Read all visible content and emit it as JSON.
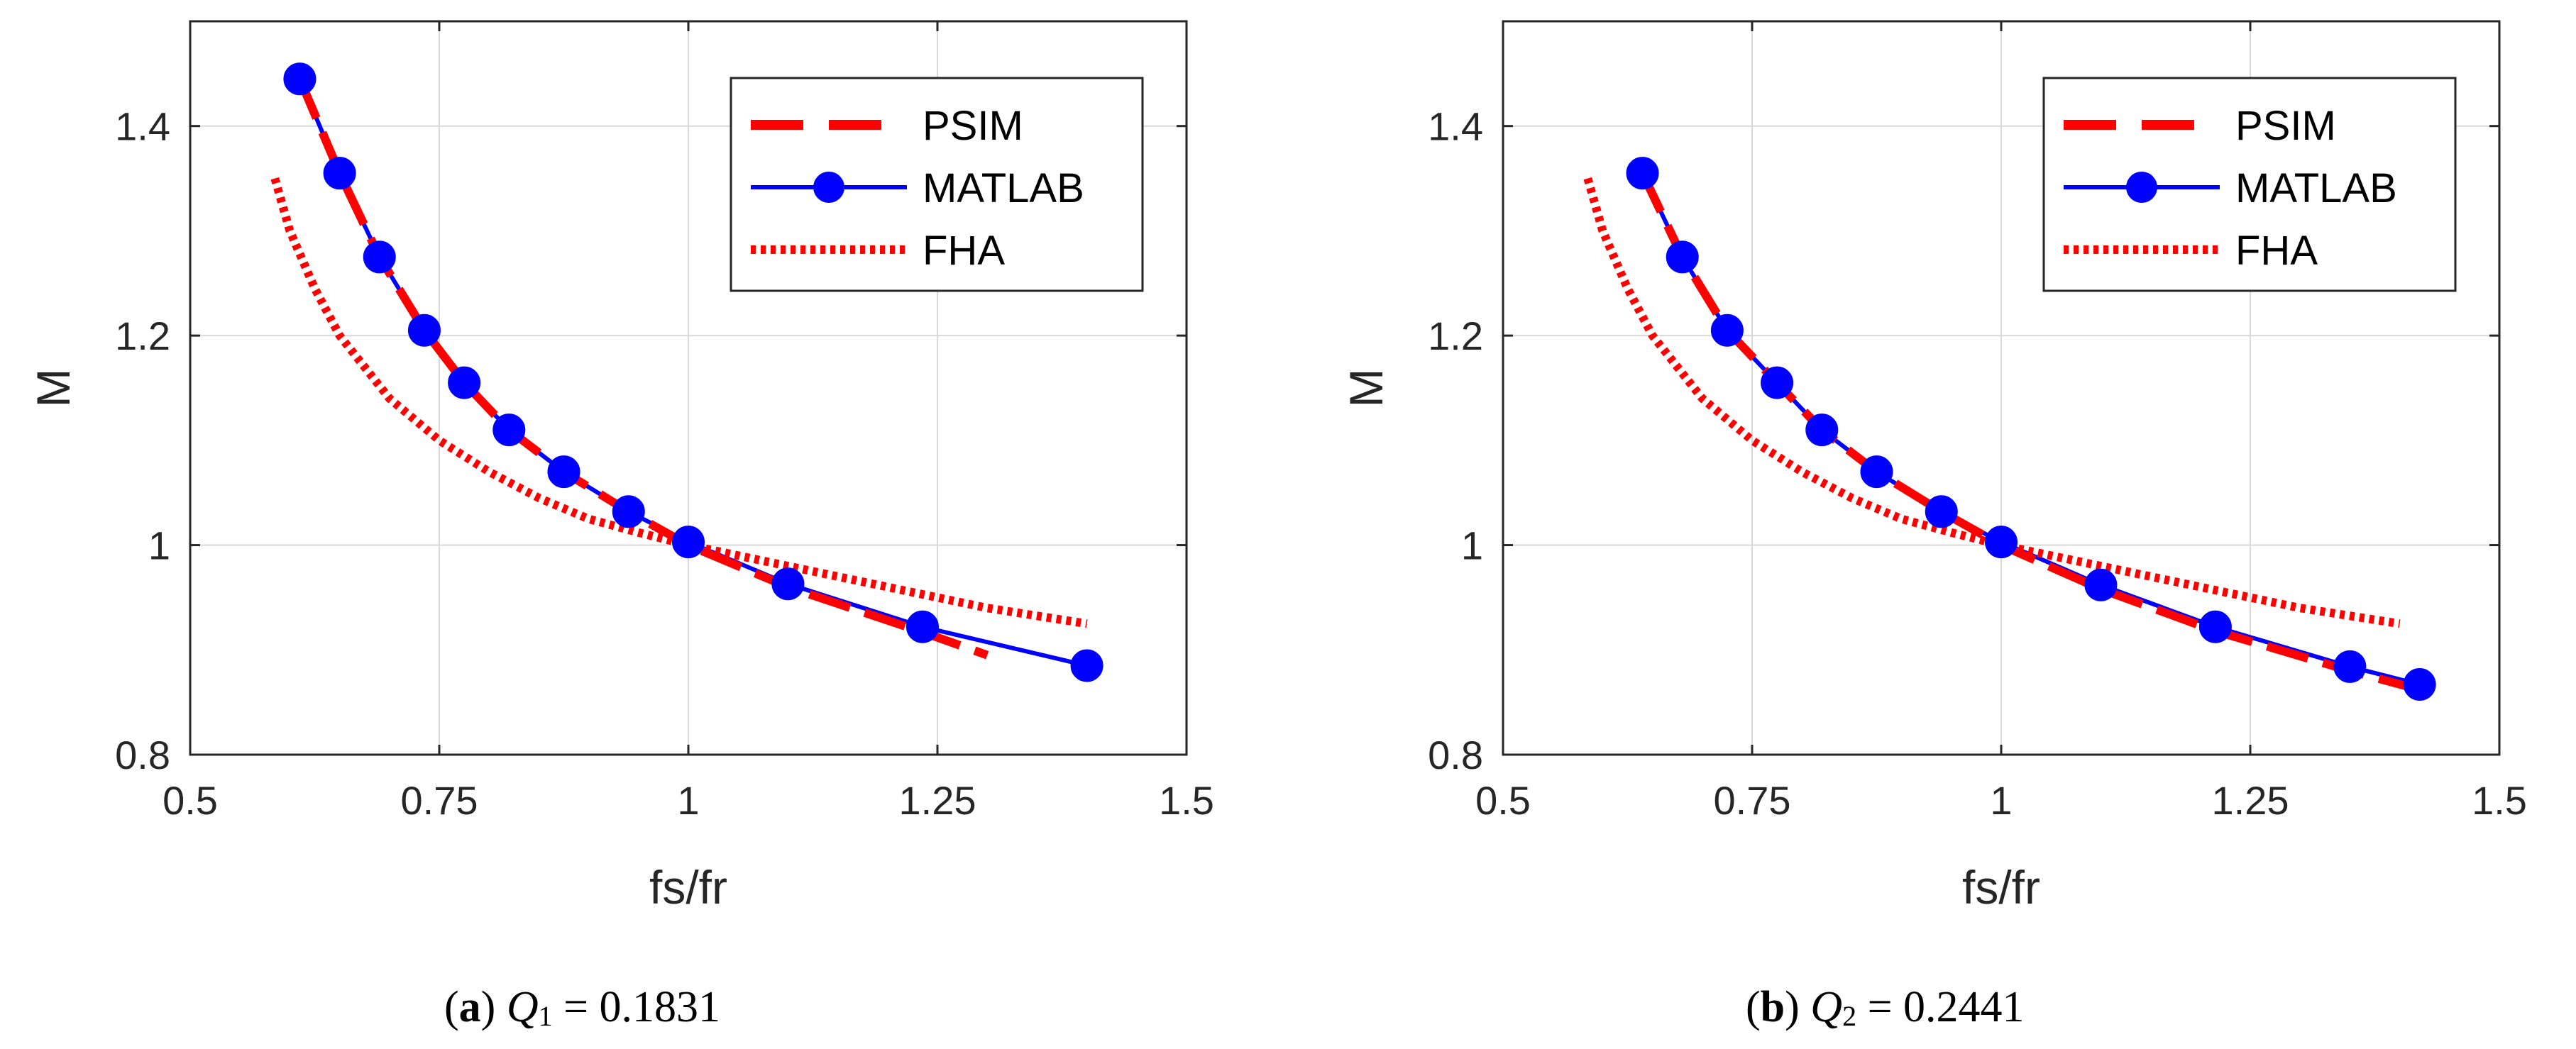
{
  "chart_data": [
    {
      "type": "line",
      "panel_label": "a",
      "caption": {
        "var": "Q",
        "sub": "1",
        "rest": " = 0.1831"
      },
      "xlabel": "fs/fr",
      "ylabel": "M",
      "xlim": [
        0.5,
        1.5
      ],
      "ylim": [
        0.8,
        1.5
      ],
      "xticks": [
        0.5,
        0.75,
        1,
        1.25,
        1.5
      ],
      "xtick_labels": [
        "0.5",
        "0.75",
        "1",
        "1.25",
        "1.5"
      ],
      "yticks": [
        0.8,
        1.0,
        1.2,
        1.4
      ],
      "ytick_labels": [
        "0.8",
        "1",
        "1.2",
        "1.4"
      ],
      "grid": true,
      "legend_position": "top-right",
      "series": [
        {
          "name": "PSIM",
          "style": "dashed",
          "color": "#ff0000",
          "x": [
            0.61,
            0.65,
            0.69,
            0.735,
            0.775,
            0.82,
            0.875,
            0.94,
            1.0,
            1.1,
            1.235,
            1.3
          ],
          "y": [
            1.445,
            1.355,
            1.275,
            1.205,
            1.155,
            1.11,
            1.07,
            1.032,
            1.0,
            0.96,
            0.917,
            0.895
          ]
        },
        {
          "name": "MATLAB",
          "style": "solid-markers",
          "color": "#0000ff",
          "x": [
            0.61,
            0.65,
            0.69,
            0.735,
            0.775,
            0.82,
            0.875,
            0.94,
            1.0,
            1.1,
            1.235,
            1.4
          ],
          "y": [
            1.445,
            1.355,
            1.275,
            1.205,
            1.155,
            1.11,
            1.07,
            1.032,
            1.003,
            0.963,
            0.922,
            0.885
          ]
        },
        {
          "name": "FHA",
          "style": "dotted",
          "color": "#ff0000",
          "x": [
            0.585,
            0.6,
            0.625,
            0.65,
            0.7,
            0.75,
            0.8,
            0.85,
            0.9,
            0.95,
            1.0,
            1.05,
            1.1,
            1.2,
            1.3,
            1.4
          ],
          "y": [
            1.35,
            1.3,
            1.245,
            1.2,
            1.14,
            1.1,
            1.07,
            1.045,
            1.025,
            1.012,
            1.0,
            0.99,
            0.98,
            0.96,
            0.94,
            0.925
          ]
        }
      ]
    },
    {
      "type": "line",
      "panel_label": "b",
      "caption": {
        "var": "Q",
        "sub": "2",
        "rest": " = 0.2441"
      },
      "xlabel": "fs/fr",
      "ylabel": "M",
      "xlim": [
        0.5,
        1.5
      ],
      "ylim": [
        0.8,
        1.5
      ],
      "xticks": [
        0.5,
        0.75,
        1,
        1.25,
        1.5
      ],
      "xtick_labels": [
        "0.5",
        "0.75",
        "1",
        "1.25",
        "1.5"
      ],
      "yticks": [
        0.8,
        1.0,
        1.2,
        1.4
      ],
      "ytick_labels": [
        "0.8",
        "1",
        "1.2",
        "1.4"
      ],
      "grid": true,
      "legend_position": "top-right",
      "series": [
        {
          "name": "PSIM",
          "style": "dashed",
          "color": "#ff0000",
          "x": [
            0.64,
            0.68,
            0.725,
            0.775,
            0.82,
            0.875,
            0.94,
            1.0,
            1.1,
            1.215,
            1.35,
            1.42
          ],
          "y": [
            1.355,
            1.275,
            1.205,
            1.155,
            1.11,
            1.07,
            1.032,
            1.0,
            0.958,
            0.918,
            0.88,
            0.862
          ]
        },
        {
          "name": "MATLAB",
          "style": "solid-markers",
          "color": "#0000ff",
          "x": [
            0.64,
            0.68,
            0.725,
            0.775,
            0.82,
            0.875,
            0.94,
            1.0,
            1.1,
            1.215,
            1.35,
            1.42
          ],
          "y": [
            1.355,
            1.275,
            1.205,
            1.155,
            1.11,
            1.07,
            1.032,
            1.003,
            0.962,
            0.922,
            0.884,
            0.867
          ]
        },
        {
          "name": "FHA",
          "style": "dotted",
          "color": "#ff0000",
          "x": [
            0.585,
            0.6,
            0.625,
            0.65,
            0.7,
            0.75,
            0.8,
            0.85,
            0.9,
            0.95,
            1.0,
            1.05,
            1.1,
            1.2,
            1.3,
            1.4
          ],
          "y": [
            1.35,
            1.3,
            1.245,
            1.2,
            1.14,
            1.1,
            1.07,
            1.045,
            1.025,
            1.012,
            1.0,
            0.99,
            0.98,
            0.96,
            0.94,
            0.925
          ]
        }
      ]
    }
  ]
}
